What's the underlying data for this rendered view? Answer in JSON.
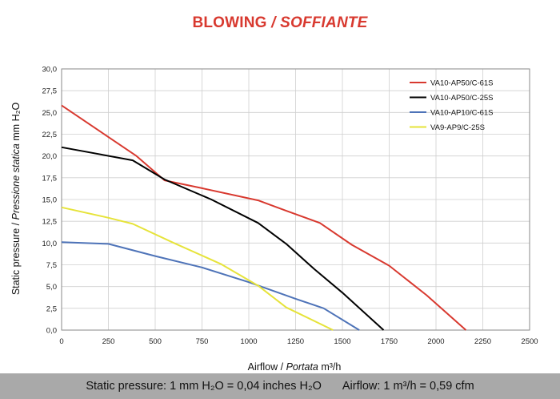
{
  "title": {
    "main": "BLOWING",
    "separator": " / ",
    "italic": "SOFFIANTE",
    "color": "#d8392f"
  },
  "chart_data": {
    "type": "line",
    "xlabel": {
      "main": "Airflow",
      "italic": "Portata",
      "unit": "m³/h"
    },
    "ylabel": {
      "main": "Static pressure",
      "italic": "Pressione statica",
      "unit": "mm H₂O"
    },
    "xlim": [
      0,
      2500
    ],
    "ylim": [
      0,
      30
    ],
    "x_ticks": [
      0,
      250,
      500,
      750,
      1000,
      1250,
      1500,
      1750,
      2000,
      2250,
      2500
    ],
    "y_ticks": [
      "0,0",
      "2,5",
      "5,0",
      "7,5",
      "10,0",
      "12,5",
      "15,0",
      "17,5",
      "20,0",
      "22,5",
      "25,0",
      "27,5",
      "30,0"
    ],
    "grid": true,
    "legend_position": "top-right",
    "series": [
      {
        "name": "VA10-AP50/C-61S",
        "color": "#d8392f",
        "points": [
          [
            0,
            25.8
          ],
          [
            400,
            20.0
          ],
          [
            550,
            17.2
          ],
          [
            750,
            16.3
          ],
          [
            1050,
            14.9
          ],
          [
            1200,
            13.7
          ],
          [
            1380,
            12.3
          ],
          [
            1550,
            9.8
          ],
          [
            1750,
            7.4
          ],
          [
            1950,
            4.0
          ],
          [
            2160,
            0.0
          ]
        ]
      },
      {
        "name": "VA10-AP50/C-25S",
        "color": "#000000",
        "points": [
          [
            0,
            21.0
          ],
          [
            380,
            19.5
          ],
          [
            550,
            17.3
          ],
          [
            800,
            15.0
          ],
          [
            1050,
            12.3
          ],
          [
            1200,
            9.9
          ],
          [
            1350,
            7.0
          ],
          [
            1500,
            4.3
          ],
          [
            1720,
            0.0
          ]
        ]
      },
      {
        "name": "VA10-AP10/C-61S",
        "color": "#4e73b8",
        "points": [
          [
            0,
            10.1
          ],
          [
            250,
            9.9
          ],
          [
            500,
            8.5
          ],
          [
            750,
            7.2
          ],
          [
            1000,
            5.5
          ],
          [
            1250,
            3.6
          ],
          [
            1400,
            2.5
          ],
          [
            1590,
            0.0
          ]
        ]
      },
      {
        "name": "VA9-AP9/C-25S",
        "color": "#e6e33a",
        "points": [
          [
            0,
            14.1
          ],
          [
            250,
            12.9
          ],
          [
            380,
            12.2
          ],
          [
            600,
            10.0
          ],
          [
            850,
            7.6
          ],
          [
            1050,
            5.1
          ],
          [
            1200,
            2.6
          ],
          [
            1450,
            0.0
          ]
        ]
      }
    ]
  },
  "footer": {
    "pressure": "Static pressure: 1 mm H₂O = 0,04 inches H₂O",
    "airflow": "Airflow: 1 m³/h = 0,59 cfm"
  }
}
